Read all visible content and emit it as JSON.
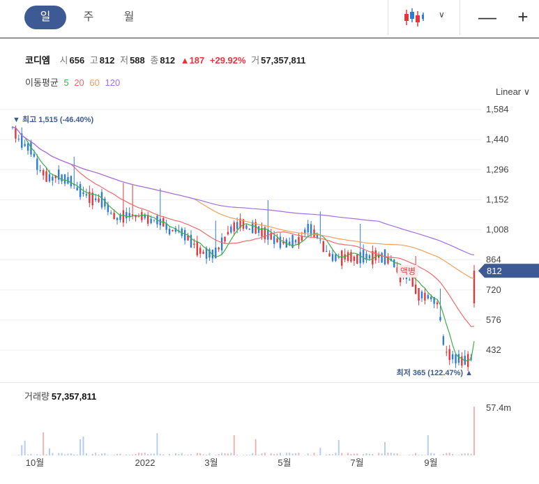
{
  "tabs": [
    {
      "label": "일"
    },
    {
      "label": "주"
    },
    {
      "label": "월"
    }
  ],
  "stock": {
    "name": "코디엠",
    "open_label": "시",
    "open": "656",
    "high_label": "고",
    "high": "812",
    "low_label": "저",
    "low": "588",
    "close_label": "종",
    "close": "812",
    "change": "▲187",
    "change_pct": "+29.92%",
    "volume_label": "거",
    "volume": "57,357,811"
  },
  "ma": {
    "label": "이동평균",
    "periods": [
      "5",
      "20",
      "60",
      "120"
    ],
    "colors": [
      "#3cb043",
      "#f06a6a",
      "#f2a05c",
      "#a46ee6"
    ]
  },
  "scale_label": "Linear ∨",
  "volume_panel": {
    "label": "거래량",
    "value": "57,357,811",
    "axis_label": "57.4m"
  },
  "colors": {
    "up": "#e2373b",
    "down": "#2f7cd6",
    "price_tag": "#3d5a94",
    "annot_hi": "#3d5a94",
    "annot_lo": "#3d5a94"
  },
  "chart_data": {
    "type": "candlestick",
    "y_ticks": [
      1584,
      1440,
      1296,
      1152,
      1008,
      864,
      720,
      576,
      432
    ],
    "ylim": [
      355,
      1600
    ],
    "x_labels": [
      "10월",
      "2022",
      "3월",
      "5월",
      "7월",
      "9월"
    ],
    "current_price": "812",
    "high_annotation": "최고 1,515 (-46.40%)",
    "low_annotation": "최저 365 (122.47%)",
    "event_label": "액병",
    "close_path": [
      1500,
      1440,
      1410,
      1390,
      1300,
      1270,
      1250,
      1270,
      1250,
      1240,
      1200,
      1180,
      1160,
      1150,
      1140,
      1090,
      1060,
      1080,
      1080,
      1070,
      1080,
      1050,
      1060,
      1040,
      1000,
      1010,
      990,
      960,
      930,
      900,
      890,
      900,
      940,
      1000,
      1020,
      1050,
      1010,
      1020,
      1000,
      990,
      960,
      950,
      940,
      950,
      960,
      1020,
      990,
      960,
      900,
      870,
      880,
      880,
      870,
      870,
      880,
      880,
      880,
      870,
      860,
      800,
      780,
      760,
      700,
      690,
      680,
      650,
      430,
      400,
      390,
      380,
      390,
      812
    ],
    "series": [
      {
        "name": "5"
      },
      {
        "name": "20"
      },
      {
        "name": "60"
      },
      {
        "name": "120"
      }
    ]
  }
}
